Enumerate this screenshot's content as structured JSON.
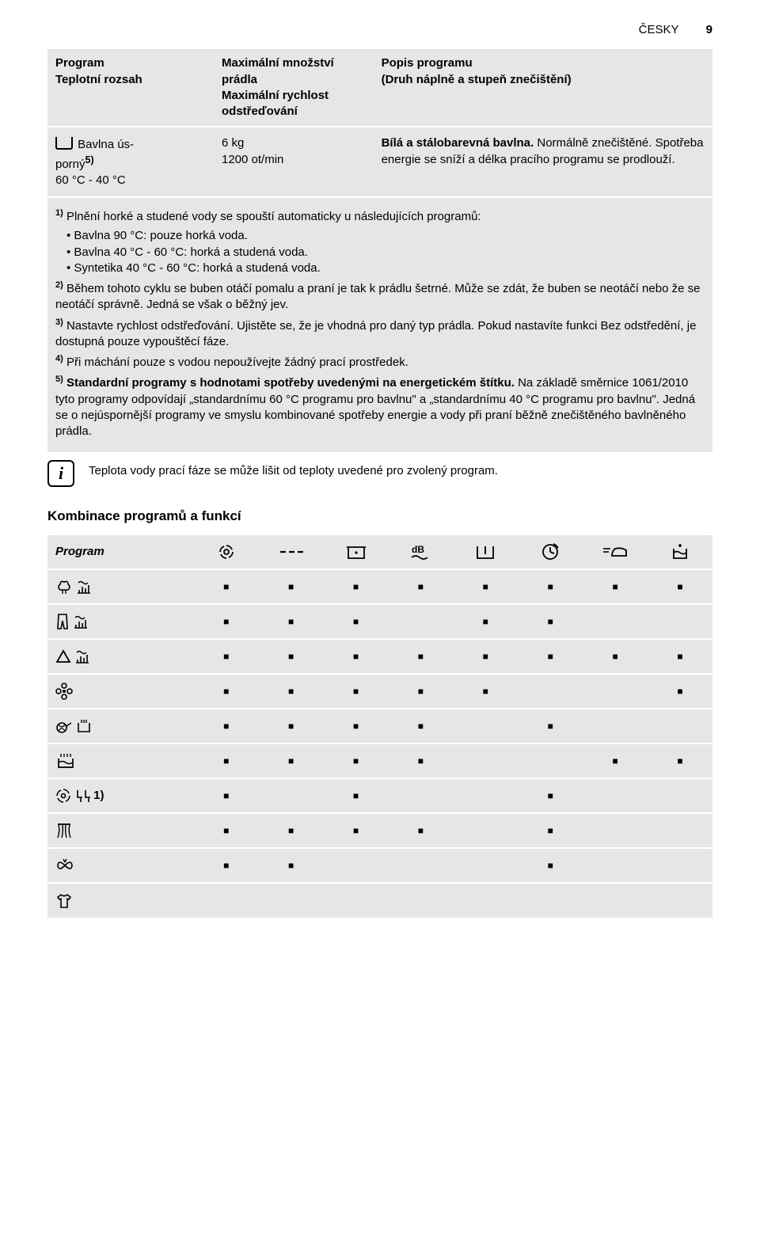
{
  "header": {
    "language": "ČESKY",
    "page": "9"
  },
  "table1": {
    "columns": [
      "Program\nTeplotní rozsah",
      "Maximální množství prádla\nMaximální rychlost odstřeďování",
      "Popis programu\n(Druh náplně a stupeň znečištění)"
    ],
    "row": {
      "program_label_pre": " Bavlna ús-",
      "program_label_post": "porný",
      "program_sup": "5)",
      "program_range": "60 °C - 40 °C",
      "load": "6 kg",
      "spin": "1200 ot/min",
      "desc_bold": "Bílá a stálobarevná bavlna.",
      "desc_rest": " Normálně znečištěné. Spotřeba energie se sníží a délka pracího programu se prodlouží."
    }
  },
  "footnotes": {
    "n1_lead": "Plnění horké a studené vody se spouští automaticky u následujících programů:",
    "n1_items": [
      "Bavlna 90 °C: pouze horká voda.",
      "Bavlna 40 °C - 60 °C: horká a studená voda.",
      "Syntetika 40 °C - 60 °C: horká a studená voda."
    ],
    "n2": "Během tohoto cyklu se buben otáčí pomalu a praní je tak k prádlu šetrné. Může se zdát, že buben se neotáčí nebo že se neotáčí správně. Jedná se však o běžný jev.",
    "n3": "Nastavte rychlost odstřeďování. Ujistěte se, že je vhodná pro daný typ prádla. Pokud nastavíte funkci Bez odstředění, je dostupná pouze vypouštěcí fáze.",
    "n4": "Při máchání pouze s vodou nepoužívejte žádný prací prostředek.",
    "n5_bold": "Standardní programy s hodnotami spotřeby uvedenými na energetickém štítku.",
    "n5_rest": " Na základě směrnice 1061/2010 tyto programy odpovídají „standardnímu 60 °C programu pro bavlnu\" a „standardnímu 40 °C programu pro bavlnu\". Jedná se o nejúspornější programy ve smyslu kombinované spotřeby energie a vody při praní běžně znečištěného bavlněného prádla."
  },
  "info_text": "Teplota vody prací fáze se může lišit od teploty uvedené pro zvolený program.",
  "section_title": "Kombinace programů a funkcí",
  "table2": {
    "header_first": "Program",
    "marker": "■",
    "suffix_row7": "1)",
    "grid": [
      [
        1,
        1,
        1,
        1,
        1,
        1,
        1,
        1
      ],
      [
        1,
        1,
        1,
        0,
        1,
        1,
        0,
        0
      ],
      [
        1,
        1,
        1,
        1,
        1,
        1,
        1,
        1
      ],
      [
        1,
        1,
        1,
        1,
        1,
        0,
        0,
        1
      ],
      [
        1,
        1,
        1,
        1,
        0,
        1,
        0,
        0
      ],
      [
        1,
        1,
        1,
        1,
        0,
        0,
        1,
        1
      ],
      [
        1,
        0,
        1,
        0,
        0,
        1,
        0,
        0
      ],
      [
        1,
        1,
        1,
        1,
        0,
        1,
        0,
        0
      ],
      [
        1,
        1,
        0,
        0,
        0,
        1,
        0,
        0
      ],
      [
        0,
        0,
        0,
        0,
        0,
        0,
        0,
        0
      ]
    ]
  },
  "colors": {
    "row_bg": "#e6e6e6",
    "text": "#000000",
    "page_bg": "#ffffff"
  }
}
